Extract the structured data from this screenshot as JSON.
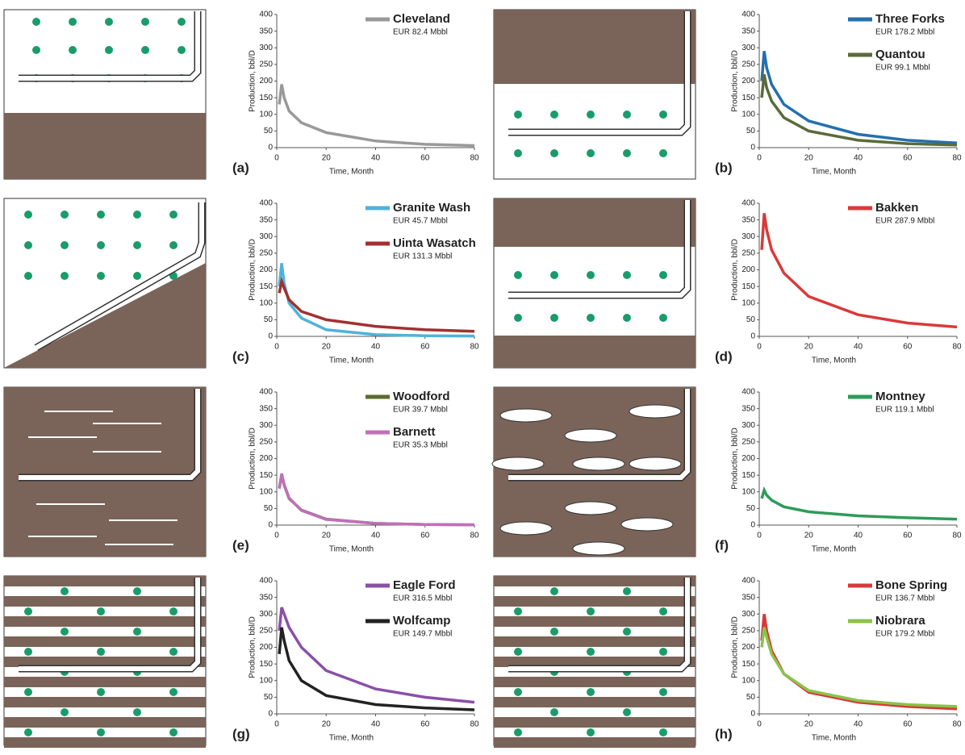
{
  "chart_data": [
    {
      "type": "line",
      "panel": "(a)",
      "xlabel": "Time, Month",
      "ylabel": "Production, bbl/D",
      "xlim": [
        0,
        80
      ],
      "ylim": [
        0,
        400
      ],
      "xticks": [
        0,
        20,
        40,
        60,
        80
      ],
      "yticks": [
        0,
        50,
        100,
        150,
        200,
        250,
        300,
        350,
        400
      ],
      "x": [
        1,
        2,
        3,
        5,
        10,
        20,
        40,
        60,
        80
      ],
      "series": [
        {
          "name": "Cleveland",
          "eur": "EUR 82.4 Mbbl",
          "color": "#999999",
          "values": [
            130,
            190,
            150,
            110,
            75,
            45,
            20,
            10,
            6
          ]
        }
      ]
    },
    {
      "type": "line",
      "panel": "(b)",
      "xlabel": "Time, Month",
      "ylabel": "Production, bbl/D",
      "xlim": [
        0,
        80
      ],
      "ylim": [
        0,
        400
      ],
      "xticks": [
        0,
        20,
        40,
        60,
        80
      ],
      "yticks": [
        0,
        50,
        100,
        150,
        200,
        250,
        300,
        350,
        400
      ],
      "x": [
        1,
        2,
        3,
        5,
        10,
        20,
        40,
        60,
        80
      ],
      "series": [
        {
          "name": "Three Forks",
          "eur": "EUR 178.2  Mbbl",
          "color": "#2470ad",
          "values": [
            200,
            290,
            240,
            190,
            130,
            80,
            40,
            22,
            14
          ]
        },
        {
          "name": "Quantou",
          "eur": "EUR 99.1  Mbbl",
          "color": "#5a6b3a",
          "values": [
            150,
            220,
            180,
            140,
            90,
            50,
            22,
            12,
            8
          ]
        }
      ]
    },
    {
      "type": "line",
      "panel": "(c)",
      "xlabel": "Time, Month",
      "ylabel": "Production, bbl/D",
      "xlim": [
        0,
        80
      ],
      "ylim": [
        0,
        400
      ],
      "xticks": [
        0,
        20,
        40,
        60,
        80
      ],
      "yticks": [
        0,
        50,
        100,
        150,
        200,
        250,
        300,
        350,
        400
      ],
      "x": [
        1,
        2,
        3,
        5,
        10,
        20,
        40,
        60,
        80
      ],
      "series": [
        {
          "name": "Granite Wash",
          "eur": "EUR 45.7  Mbbl",
          "color": "#4fb3d9",
          "values": [
            150,
            220,
            160,
            100,
            55,
            20,
            5,
            2,
            1
          ]
        },
        {
          "name": "Uinta Wasatch",
          "eur": "EUR 131.3  Mbbl",
          "color": "#a33030",
          "values": [
            130,
            165,
            145,
            110,
            75,
            50,
            30,
            20,
            15
          ]
        }
      ]
    },
    {
      "type": "line",
      "panel": "(d)",
      "xlabel": "Time, Month",
      "ylabel": "Production, bbl/D",
      "xlim": [
        0,
        80
      ],
      "ylim": [
        0,
        400
      ],
      "xticks": [
        0,
        20,
        40,
        60,
        80
      ],
      "yticks": [
        0,
        50,
        100,
        150,
        200,
        250,
        300,
        350,
        400
      ],
      "x": [
        1,
        2,
        3,
        5,
        10,
        20,
        40,
        60,
        80
      ],
      "series": [
        {
          "name": "Bakken",
          "eur": "EUR 287.9  Mbbl",
          "color": "#d93a3a",
          "values": [
            260,
            370,
            320,
            260,
            190,
            120,
            65,
            40,
            28
          ]
        }
      ]
    },
    {
      "type": "line",
      "panel": "(e)",
      "xlabel": "Time, Month",
      "ylabel": "Production, bbl/D",
      "xlim": [
        0,
        80
      ],
      "ylim": [
        0,
        400
      ],
      "xticks": [
        0,
        20,
        40,
        60,
        80
      ],
      "yticks": [
        0,
        50,
        100,
        150,
        200,
        250,
        300,
        350,
        400
      ],
      "x": [
        1,
        2,
        3,
        5,
        10,
        20,
        40,
        60,
        80
      ],
      "series": [
        {
          "name": "Woodford",
          "eur": "EUR 39.7  Mbbl",
          "color": "#5c6b2e",
          "values": [
            110,
            150,
            120,
            80,
            45,
            18,
            5,
            2,
            1
          ]
        },
        {
          "name": "Barnett",
          "eur": "EUR 35.3  Mbbl",
          "color": "#c070b8",
          "values": [
            110,
            155,
            122,
            82,
            44,
            17,
            5,
            2,
            1
          ]
        }
      ]
    },
    {
      "type": "line",
      "panel": "(f)",
      "xlabel": "Time, Month",
      "ylabel": "Production, bbl/D",
      "xlim": [
        0,
        80
      ],
      "ylim": [
        0,
        400
      ],
      "xticks": [
        0,
        20,
        40,
        60,
        80
      ],
      "yticks": [
        0,
        50,
        100,
        150,
        200,
        250,
        300,
        350,
        400
      ],
      "x": [
        1,
        2,
        3,
        5,
        10,
        20,
        40,
        60,
        80
      ],
      "series": [
        {
          "name": "Montney",
          "eur": "EUR 119.1  Mbbl",
          "color": "#2e9b5a",
          "values": [
            80,
            105,
            90,
            75,
            55,
            40,
            28,
            22,
            18
          ]
        }
      ]
    },
    {
      "type": "line",
      "panel": "(g)",
      "xlabel": "Time, Month",
      "ylabel": "Production, bbl/D",
      "xlim": [
        0,
        80
      ],
      "ylim": [
        0,
        400
      ],
      "xticks": [
        0,
        20,
        40,
        60,
        80
      ],
      "yticks": [
        0,
        50,
        100,
        150,
        200,
        250,
        300,
        350,
        400
      ],
      "x": [
        1,
        2,
        3,
        5,
        10,
        20,
        40,
        60,
        80
      ],
      "series": [
        {
          "name": "Eagle Ford",
          "eur": "EUR 316.5  Mbbl",
          "color": "#8a50a8",
          "values": [
            250,
            320,
            300,
            260,
            200,
            130,
            75,
            50,
            35
          ]
        },
        {
          "name": "Wolfcamp",
          "eur": "EUR 149.7  Mbbl",
          "color": "#222222",
          "values": [
            180,
            260,
            220,
            160,
            100,
            55,
            28,
            18,
            12
          ]
        }
      ]
    },
    {
      "type": "line",
      "panel": "(h)",
      "xlabel": "Time, Month",
      "ylabel": "Production, bbl/D",
      "xlim": [
        0,
        80
      ],
      "ylim": [
        0,
        400
      ],
      "xticks": [
        0,
        20,
        40,
        60,
        80
      ],
      "yticks": [
        0,
        50,
        100,
        150,
        200,
        250,
        300,
        350,
        400
      ],
      "x": [
        1,
        2,
        3,
        5,
        10,
        20,
        40,
        60,
        80
      ],
      "series": [
        {
          "name": "Bone Spring",
          "eur": "EUR 136.7  Mbbl",
          "color": "#d63a3a",
          "values": [
            220,
            300,
            250,
            190,
            120,
            65,
            35,
            22,
            15
          ]
        },
        {
          "name": "Niobrara",
          "eur": "EUR 179.2  Mbbl",
          "color": "#8bc34a",
          "values": [
            200,
            260,
            230,
            180,
            120,
            70,
            40,
            28,
            22
          ]
        }
      ]
    }
  ]
}
